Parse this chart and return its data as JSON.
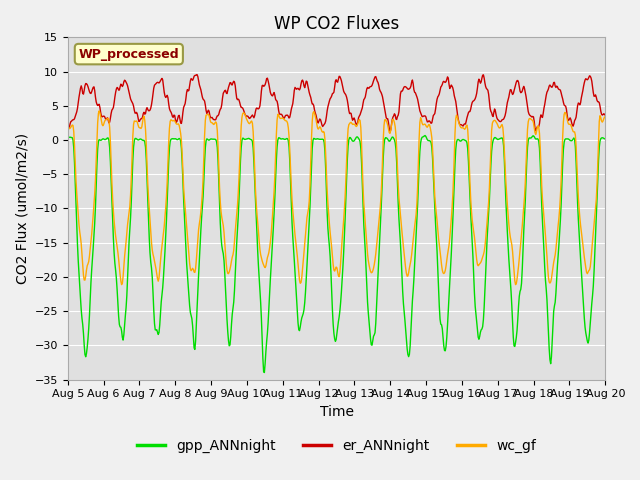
{
  "title": "WP CO2 Fluxes",
  "xlabel": "Time",
  "ylabel": "CO2 Flux (umol/m2/s)",
  "ylim": [
    -35,
    15
  ],
  "yticks": [
    -35,
    -30,
    -25,
    -20,
    -15,
    -10,
    -5,
    0,
    5,
    10,
    15
  ],
  "xtick_labels": [
    "Aug 5",
    "Aug 6",
    "Aug 7",
    "Aug 8",
    "Aug 9",
    "Aug 10",
    "Aug 11",
    "Aug 12",
    "Aug 13",
    "Aug 14",
    "Aug 15",
    "Aug 16",
    "Aug 17",
    "Aug 18",
    "Aug 19",
    "Aug 20"
  ],
  "line_colors": {
    "gpp": "#00dd00",
    "er": "#cc0000",
    "wc": "#ffaa00"
  },
  "legend_label": "WP_processed",
  "legend_text_color": "#8b0000",
  "legend_bg_color": "#ffffcc",
  "plot_bg_color": "#e0e0e0",
  "fig_bg_color": "#f0f0f0",
  "legend_entries": [
    "gpp_ANNnight",
    "er_ANNnight",
    "wc_gf"
  ],
  "n_days": 15,
  "points_per_day": 48,
  "seed": 42
}
